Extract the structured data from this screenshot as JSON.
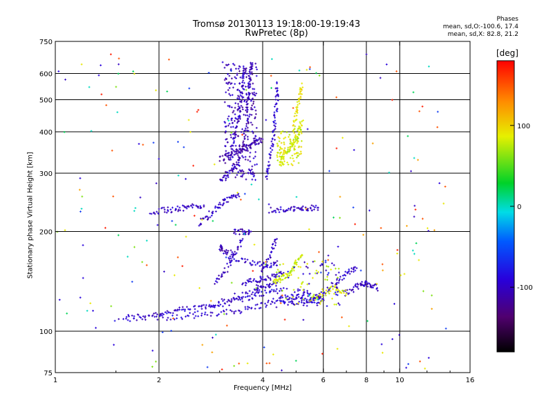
{
  "title_line1": "Tromsø 20130113 19:18:00-19:19:43",
  "title_line2": "RwPretec (8p)",
  "stats": {
    "heading": "Phases",
    "line1": "mean, sd,O:-100.6, 17.4",
    "line2": "mean, sd,X:  82.8, 21.2"
  },
  "colorbar": {
    "unit": "[deg]",
    "range": [
      -180,
      180
    ],
    "ticks": [
      100,
      0,
      -100
    ]
  },
  "chart_data": {
    "type": "scatter",
    "xlabel": "Frequency [MHz]",
    "ylabel": "Stationary phase Virtual Height [km]",
    "xscale": "log",
    "yscale": "log",
    "xlim": [
      1,
      16
    ],
    "ylim": [
      75,
      750
    ],
    "grid": true,
    "xticks": [
      1,
      2,
      4,
      6,
      8,
      10,
      16
    ],
    "yticks": [
      75,
      100,
      200,
      300,
      400,
      500,
      600,
      750
    ],
    "x_gridlines": [
      2,
      4,
      6,
      8,
      10
    ],
    "y_gridlines": [
      100,
      200,
      300,
      400,
      500,
      600
    ],
    "color_encoding": "phase (deg)",
    "traces": [
      {
        "mode": "O",
        "phase": -100,
        "points": [
          [
            1.6,
            110
          ],
          [
            1.9,
            112
          ],
          [
            2.2,
            115
          ],
          [
            2.6,
            118
          ],
          [
            3.0,
            122
          ],
          [
            3.4,
            127
          ],
          [
            3.8,
            132
          ],
          [
            4.1,
            137
          ],
          [
            4.4,
            140
          ]
        ]
      },
      {
        "mode": "O",
        "phase": -95,
        "points": [
          [
            1.5,
            109
          ],
          [
            2.0,
            110
          ],
          [
            2.5,
            111
          ],
          [
            3.0,
            113
          ],
          [
            3.5,
            116
          ],
          [
            4.0,
            120
          ],
          [
            4.5,
            125
          ],
          [
            5.0,
            128
          ],
          [
            5.5,
            130
          ]
        ]
      },
      {
        "mode": "O",
        "phase": -90,
        "points": [
          [
            2.0,
            112
          ],
          [
            2.8,
            118
          ],
          [
            3.4,
            124
          ],
          [
            4.0,
            130
          ],
          [
            4.6,
            135
          ]
        ]
      },
      {
        "mode": "O",
        "phase": -100,
        "points": [
          [
            2.9,
            140
          ],
          [
            3.1,
            150
          ],
          [
            3.3,
            170
          ],
          [
            3.5,
            190
          ]
        ]
      },
      {
        "mode": "O",
        "phase": -100,
        "points": [
          [
            3.5,
            140
          ],
          [
            3.8,
            142
          ],
          [
            4.2,
            145
          ],
          [
            4.6,
            150
          ]
        ]
      },
      {
        "mode": "O",
        "phase": -95,
        "points": [
          [
            3.2,
            165
          ],
          [
            3.6,
            162
          ],
          [
            4.0,
            160
          ],
          [
            4.4,
            158
          ]
        ]
      },
      {
        "mode": "O",
        "phase": -105,
        "points": [
          [
            3.0,
            180
          ],
          [
            3.1,
            175
          ],
          [
            3.3,
            170
          ]
        ]
      },
      {
        "mode": "O",
        "phase": -100,
        "points": [
          [
            3.8,
            130
          ],
          [
            4.0,
            150
          ],
          [
            4.2,
            170
          ],
          [
            4.4,
            190
          ]
        ]
      },
      {
        "mode": "O",
        "phase": -95,
        "points": [
          [
            5.3,
            120
          ],
          [
            5.6,
            125
          ],
          [
            6.0,
            130
          ],
          [
            6.5,
            140
          ],
          [
            7.0,
            150
          ],
          [
            7.5,
            155
          ]
        ]
      },
      {
        "mode": "O",
        "phase": -100,
        "points": [
          [
            6.9,
            130
          ],
          [
            7.4,
            135
          ],
          [
            7.8,
            140
          ],
          [
            8.2,
            138
          ],
          [
            8.6,
            135
          ]
        ]
      },
      {
        "mode": "X",
        "phase": 80,
        "points": [
          [
            4.3,
            140
          ],
          [
            4.5,
            145
          ],
          [
            4.8,
            150
          ],
          [
            5.0,
            160
          ],
          [
            5.2,
            170
          ]
        ]
      },
      {
        "mode": "X",
        "phase": 85,
        "points": [
          [
            5.5,
            125
          ],
          [
            6.0,
            130
          ],
          [
            6.5,
            135
          ],
          [
            7.0,
            130
          ]
        ]
      },
      {
        "mode": "O",
        "phase": -95,
        "points": [
          [
            4.5,
            122
          ],
          [
            5.0,
            123
          ],
          [
            5.5,
            124
          ],
          [
            6.0,
            125
          ]
        ]
      },
      {
        "mode": "O",
        "phase": -100,
        "points": [
          [
            2.6,
            210
          ],
          [
            2.8,
            225
          ],
          [
            3.0,
            240
          ],
          [
            3.2,
            250
          ],
          [
            3.4,
            260
          ]
        ]
      },
      {
        "mode": "O",
        "phase": -105,
        "points": [
          [
            3.0,
            285
          ],
          [
            3.2,
            300
          ],
          [
            3.4,
            320
          ],
          [
            3.5,
            360
          ],
          [
            3.6,
            420
          ],
          [
            3.6,
            480
          ],
          [
            3.65,
            540
          ],
          [
            3.7,
            600
          ],
          [
            3.7,
            640
          ]
        ]
      },
      {
        "mode": "O",
        "phase": -110,
        "points": [
          [
            3.0,
            330
          ],
          [
            3.2,
            340
          ],
          [
            3.4,
            350
          ],
          [
            3.6,
            360
          ],
          [
            3.8,
            370
          ],
          [
            4.0,
            380
          ]
        ]
      },
      {
        "mode": "O",
        "phase": -100,
        "points": [
          [
            3.2,
            330
          ],
          [
            3.3,
            380
          ],
          [
            3.4,
            440
          ],
          [
            3.45,
            500
          ],
          [
            3.5,
            560
          ],
          [
            3.55,
            620
          ]
        ]
      },
      {
        "mode": "O",
        "phase": -95,
        "points": [
          [
            4.1,
            290
          ],
          [
            4.2,
            330
          ],
          [
            4.3,
            380
          ],
          [
            4.35,
            440
          ],
          [
            4.4,
            500
          ],
          [
            4.4,
            560
          ]
        ]
      },
      {
        "mode": "X",
        "phase": 80,
        "points": [
          [
            4.5,
            320
          ],
          [
            4.6,
            340
          ],
          [
            4.8,
            360
          ],
          [
            5.0,
            380
          ],
          [
            5.1,
            400
          ],
          [
            5.2,
            430
          ]
        ]
      },
      {
        "mode": "X",
        "phase": 90,
        "points": [
          [
            4.9,
            400
          ],
          [
            5.0,
            450
          ],
          [
            5.1,
            500
          ],
          [
            5.2,
            560
          ]
        ]
      },
      {
        "mode": "O",
        "phase": -100,
        "points": [
          [
            4.2,
            232
          ],
          [
            4.6,
            233
          ],
          [
            5.0,
            234
          ],
          [
            5.4,
            235
          ],
          [
            5.8,
            236
          ]
        ]
      },
      {
        "mode": "O",
        "phase": -100,
        "points": [
          [
            1.9,
            230
          ],
          [
            2.1,
            232
          ],
          [
            2.3,
            235
          ],
          [
            2.5,
            238
          ],
          [
            2.7,
            240
          ]
        ]
      },
      {
        "mode": "O",
        "phase": -105,
        "points": [
          [
            3.3,
            200
          ],
          [
            3.5,
            200
          ],
          [
            3.7,
            200
          ]
        ]
      }
    ],
    "noise_points_approx": 230
  }
}
